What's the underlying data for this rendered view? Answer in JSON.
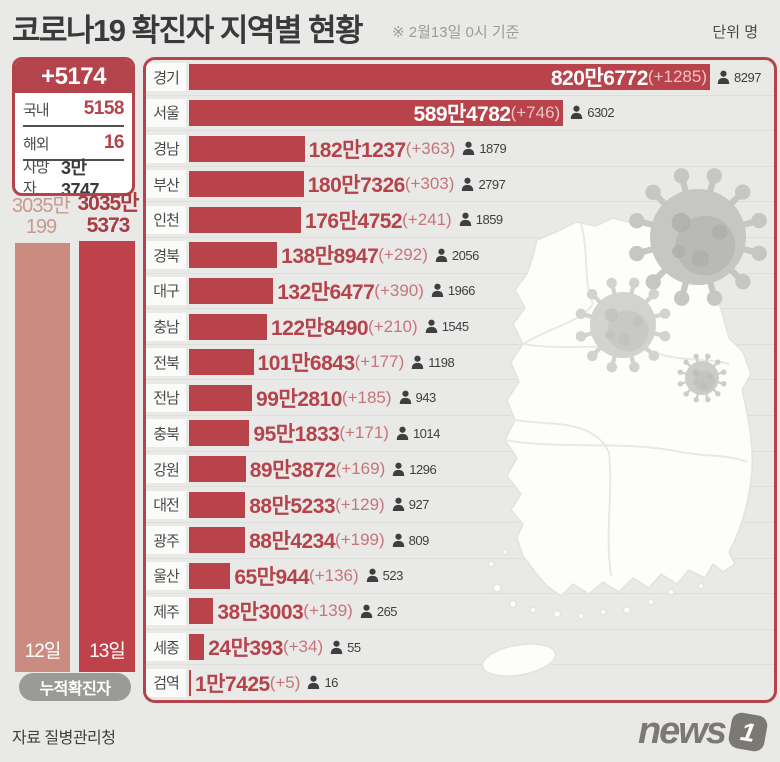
{
  "header": {
    "title": "코로나19 확진자 지역별 현황",
    "date_note": "※ 2월13일 0시 기준",
    "unit_label": "단위 명"
  },
  "summary": {
    "daily_new": "+5174",
    "rows": [
      {
        "label": "국내",
        "value": "5158"
      },
      {
        "label": "해외",
        "value": "16"
      },
      {
        "label": "사망자",
        "value": "3만3747"
      }
    ]
  },
  "chart_data": [
    {
      "id": "regional_cases",
      "type": "bar",
      "orientation": "horizontal",
      "title": "코로나19 확진자 지역별 현황",
      "as_of": "2월13일 0시 기준",
      "unit": "명",
      "xlim": [
        0,
        8206772
      ],
      "inside_label_rows": 2,
      "regions": [
        {
          "name": "경기",
          "total": 8206772,
          "total_label": "820만6772",
          "delta": 1285,
          "delta_label": "(+1285)",
          "deaths": 8297
        },
        {
          "name": "서울",
          "total": 5894782,
          "total_label": "589만4782",
          "delta": 746,
          "delta_label": "(+746)",
          "deaths": 6302
        },
        {
          "name": "경남",
          "total": 1821237,
          "total_label": "182만1237",
          "delta": 363,
          "delta_label": "(+363)",
          "deaths": 1879
        },
        {
          "name": "부산",
          "total": 1807326,
          "total_label": "180만7326",
          "delta": 303,
          "delta_label": "(+303)",
          "deaths": 2797
        },
        {
          "name": "인천",
          "total": 1764752,
          "total_label": "176만4752",
          "delta": 241,
          "delta_label": "(+241)",
          "deaths": 1859
        },
        {
          "name": "경북",
          "total": 1388947,
          "total_label": "138만8947",
          "delta": 292,
          "delta_label": "(+292)",
          "deaths": 2056
        },
        {
          "name": "대구",
          "total": 1326477,
          "total_label": "132만6477",
          "delta": 390,
          "delta_label": "(+390)",
          "deaths": 1966
        },
        {
          "name": "충남",
          "total": 1228490,
          "total_label": "122만8490",
          "delta": 210,
          "delta_label": "(+210)",
          "deaths": 1545
        },
        {
          "name": "전북",
          "total": 1016843,
          "total_label": "101만6843",
          "delta": 177,
          "delta_label": "(+177)",
          "deaths": 1198
        },
        {
          "name": "전남",
          "total": 992810,
          "total_label": "99만2810",
          "delta": 185,
          "delta_label": "(+185)",
          "deaths": 943
        },
        {
          "name": "충북",
          "total": 951833,
          "total_label": "95만1833",
          "delta": 171,
          "delta_label": "(+171)",
          "deaths": 1014
        },
        {
          "name": "강원",
          "total": 893872,
          "total_label": "89만3872",
          "delta": 169,
          "delta_label": "(+169)",
          "deaths": 1296
        },
        {
          "name": "대전",
          "total": 885233,
          "total_label": "88만5233",
          "delta": 129,
          "delta_label": "(+129)",
          "deaths": 927
        },
        {
          "name": "광주",
          "total": 884234,
          "total_label": "88만4234",
          "delta": 199,
          "delta_label": "(+199)",
          "deaths": 809
        },
        {
          "name": "울산",
          "total": 650944,
          "total_label": "65만944",
          "delta": 136,
          "delta_label": "(+136)",
          "deaths": 523
        },
        {
          "name": "제주",
          "total": 383003,
          "total_label": "38만3003",
          "delta": 139,
          "delta_label": "(+139)",
          "deaths": 265
        },
        {
          "name": "세종",
          "total": 240393,
          "total_label": "24만393",
          "delta": 34,
          "delta_label": "(+34)",
          "deaths": 55
        },
        {
          "name": "검역",
          "total": 17425,
          "total_label": "1만7425",
          "delta": 5,
          "delta_label": "(+5)",
          "deaths": 16
        }
      ]
    },
    {
      "id": "cumulative_comparison",
      "type": "bar",
      "title": "누적확진자",
      "categories": [
        "12일",
        "13일"
      ],
      "values": [
        30350199,
        30355373
      ],
      "value_labels": [
        [
          "3035만",
          "199"
        ],
        [
          "3035만",
          "5373"
        ]
      ]
    }
  ],
  "footer": {
    "source": "자료 질병관리청",
    "logo_text": "news",
    "logo_one": "1"
  },
  "colors": {
    "accent_red": "#b5434b",
    "bar_red": "#b8434b",
    "bar_prev_light": "#ca8b81",
    "bar_curr_red": "#bf4149",
    "text_dark": "#3a3a3a",
    "background": "#e9e9e7",
    "virus_gray": "#c9c9c7",
    "logo_gray": "#7c7974"
  }
}
